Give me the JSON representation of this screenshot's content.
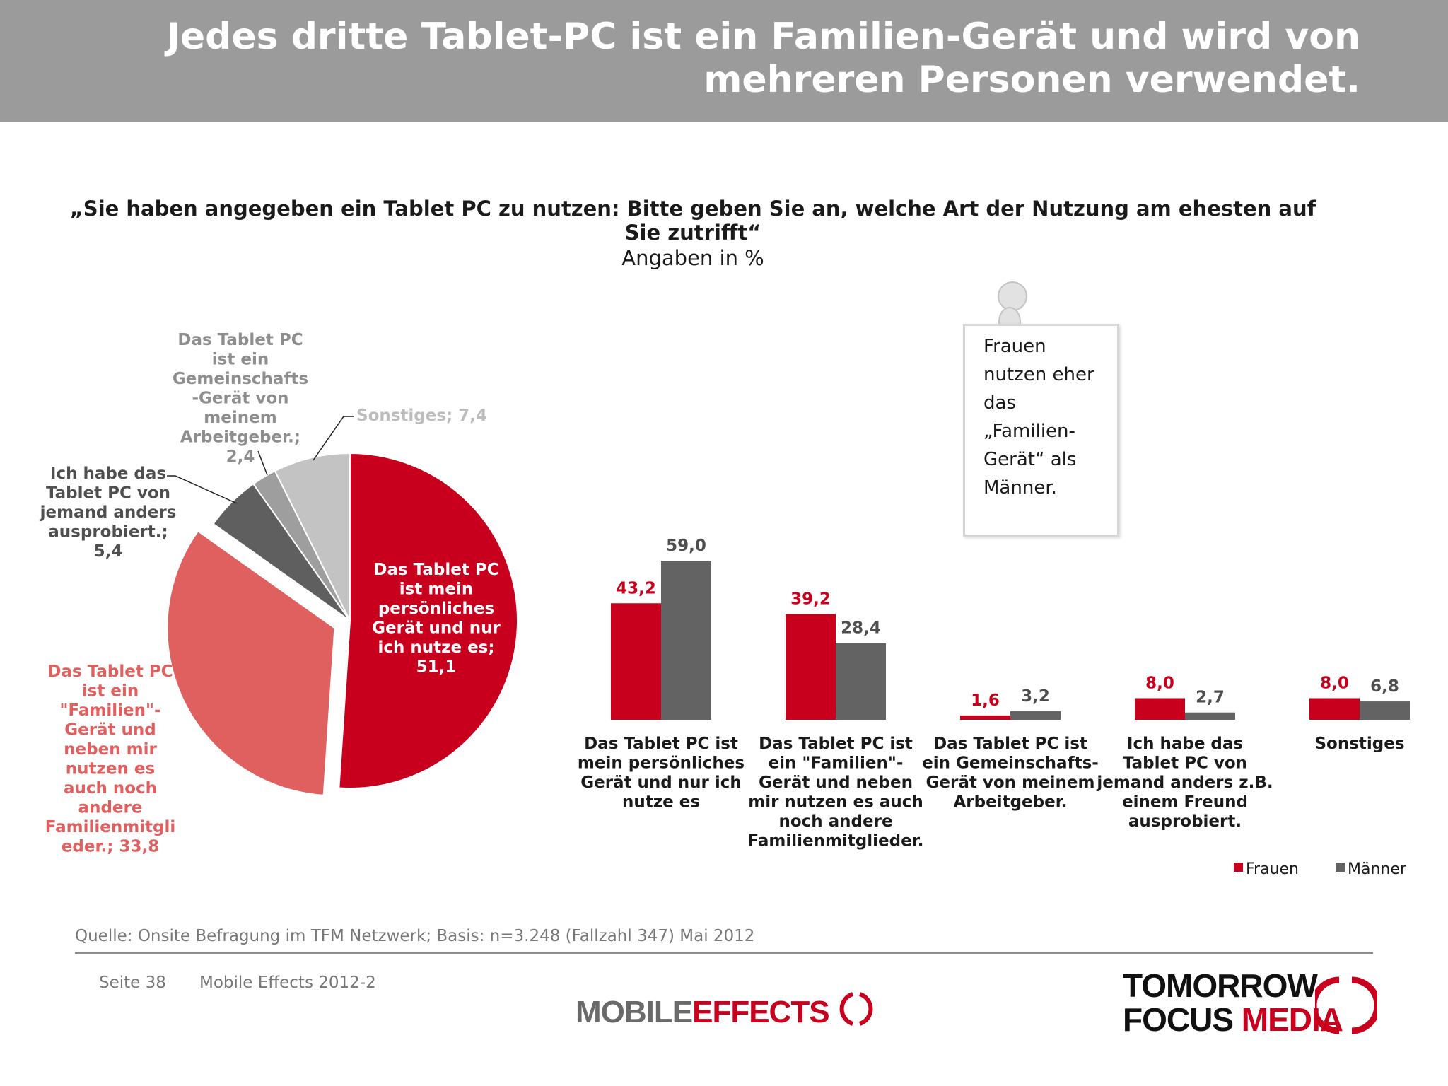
{
  "header": {
    "title_line1": "Jedes dritte Tablet-PC ist ein Familien-Gerät und wird von",
    "title_line2": "mehreren Personen verwendet."
  },
  "question": {
    "line1": "„Sie haben angegeben ein Tablet PC zu nutzen: Bitte geben Sie an, welche Art der Nutzung am ehesten auf",
    "line2": "Sie zutrifft“",
    "unit": "Angaben in %"
  },
  "note": {
    "lines": [
      "Frauen",
      "nutzen eher",
      "das",
      "„Familien-",
      "Gerät“  als",
      "Männer."
    ]
  },
  "chart_data": [
    {
      "type": "pie",
      "title": "",
      "slices": [
        {
          "label": "Das Tablet PC ist mein persönliches Gerät und nur ich nutze es",
          "value": 51.1,
          "value_text": "51,1",
          "color": "#c8001e",
          "label_lines": [
            "Das Tablet PC",
            "ist mein",
            "persönliches",
            "Gerät und nur",
            "ich nutze es;",
            "51,1"
          ]
        },
        {
          "label": "Das Tablet PC ist ein \"Familien\"-Gerät und neben mir nutzen es auch noch andere Familienmitglieder.",
          "value": 33.8,
          "value_text": "33,8",
          "color": "#e06060",
          "label_lines": [
            "Das Tablet PC",
            "ist ein",
            "\"Familien\"-",
            "Gerät und",
            "neben mir",
            "nutzen es",
            "auch noch",
            "andere",
            "Familienmitgli",
            "eder.; 33,8"
          ]
        },
        {
          "label": "Ich habe das Tablet PC von jemand anders ausprobiert.",
          "value": 5.4,
          "value_text": "5,4",
          "color": "#5f5f5f",
          "label_lines": [
            "Ich habe das",
            "Tablet PC von",
            "jemand anders",
            "ausprobiert.;",
            "5,4"
          ]
        },
        {
          "label": "Das Tablet PC ist ein Gemeinschafts-Gerät von meinem Arbeitgeber.",
          "value": 2.4,
          "value_text": "2,4",
          "color": "#9e9e9e",
          "label_lines": [
            "Das Tablet PC",
            "ist ein",
            "Gemeinschafts",
            "-Gerät von",
            "meinem",
            "Arbeitgeber.;",
            "2,4"
          ]
        },
        {
          "label": "Sonstiges",
          "value": 7.4,
          "value_text": "7,4",
          "color": "#c3c3c3",
          "label_lines": [
            "Sonstiges; 7,4"
          ]
        }
      ]
    },
    {
      "type": "bar",
      "title": "",
      "categories": [
        [
          "Das Tablet PC ist",
          "mein persönliches",
          "Gerät und nur ich",
          "nutze es"
        ],
        [
          "Das Tablet PC ist",
          "ein \"Familien\"-",
          "Gerät und neben",
          "mir nutzen es auch",
          "noch andere",
          "Familienmitglieder."
        ],
        [
          "Das Tablet PC ist",
          "ein Gemeinschafts-",
          "Gerät von meinem",
          "Arbeitgeber."
        ],
        [
          "Ich habe das",
          "Tablet PC von",
          "jemand anders z.B.",
          "einem Freund",
          "ausprobiert."
        ],
        [
          "Sonstiges"
        ]
      ],
      "series": [
        {
          "name": "Frauen",
          "color": "#c8001e",
          "values": [
            43.2,
            39.2,
            1.6,
            8.0,
            8.0
          ],
          "labels": [
            "43,2",
            "39,2",
            "1,6",
            "8,0",
            "8,0"
          ]
        },
        {
          "name": "Männer",
          "color": "#636363",
          "values": [
            59.0,
            28.4,
            3.2,
            2.7,
            6.8
          ],
          "labels": [
            "59,0",
            "28,4",
            "3,2",
            "2,7",
            "6,8"
          ]
        }
      ],
      "ylim": [
        0,
        65
      ],
      "legend": "bottom-right",
      "grid": false
    }
  ],
  "footer": {
    "source": "Quelle: Onsite Befragung im TFM Netzwerk; Basis: n=3.248 (Fallzahl 347) Mai 2012",
    "page": "Seite 38",
    "study": "Mobile Effects 2012-2",
    "logo_mobile": "MOBILE",
    "logo_effects": "EFFECTS",
    "logo_tomorrow": "TOMORROW",
    "logo_focus": "FOCUS",
    "logo_media": "MEDIA"
  }
}
